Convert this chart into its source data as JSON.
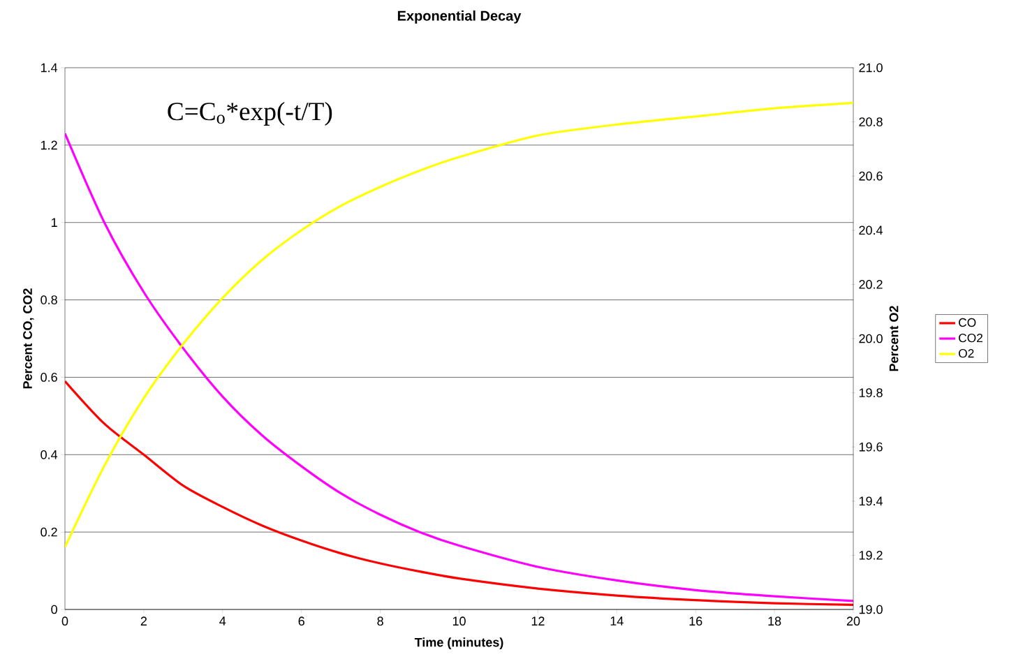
{
  "chart_data": {
    "type": "line",
    "title": "Exponential Decay",
    "xlabel": "Time (minutes)",
    "ylabel": "Percent CO, CO2",
    "y2label": "Percent O2",
    "annotations": [
      "C=C$_{o}$*exp(-t/T)"
    ],
    "x": [
      0,
      1,
      2,
      3,
      4,
      5,
      6,
      7,
      8,
      9,
      10,
      12,
      14,
      16,
      18,
      20
    ],
    "series": [
      {
        "name": "CO",
        "color": "#ff0000",
        "values": [
          0.59,
          0.48,
          0.4,
          0.32,
          0.265,
          0.217,
          0.178,
          0.145,
          0.119,
          0.098,
          0.08,
          0.054,
          0.036,
          0.024,
          0.016,
          0.012
        ]
      },
      {
        "name": "CO2",
        "color": "#ff00ff",
        "values": [
          1.23,
          1.0,
          0.82,
          0.675,
          0.55,
          0.45,
          0.37,
          0.3,
          0.245,
          0.2,
          0.165,
          0.11,
          0.075,
          0.05,
          0.034,
          0.022
        ]
      },
      {
        "name": "O2",
        "color": "#ffff00",
        "axis": "y2",
        "values": [
          19.23,
          19.53,
          19.78,
          19.98,
          20.15,
          20.29,
          20.4,
          20.49,
          20.56,
          20.62,
          20.67,
          20.75,
          20.79,
          20.82,
          20.85,
          20.87
        ]
      }
    ],
    "xlim": [
      0,
      20
    ],
    "xticks": [
      0,
      2,
      4,
      6,
      8,
      10,
      12,
      14,
      16,
      18,
      20
    ],
    "ylim": [
      0,
      1.4
    ],
    "yticks": [
      0,
      0.2,
      0.4,
      0.6,
      0.8,
      1,
      1.2,
      1.4
    ],
    "y2lim": [
      19,
      21
    ],
    "y2ticks": [
      {
        "value": 19,
        "label": "19.0"
      },
      19.2,
      19.4,
      19.6,
      19.8,
      {
        "value": 20,
        "label": "20.0"
      },
      20.2,
      20.4,
      20.6,
      20.8,
      {
        "value": 21,
        "label": "21.0"
      }
    ],
    "grid": "y",
    "legend": "right",
    "marker": "none",
    "line_style": "solid"
  }
}
